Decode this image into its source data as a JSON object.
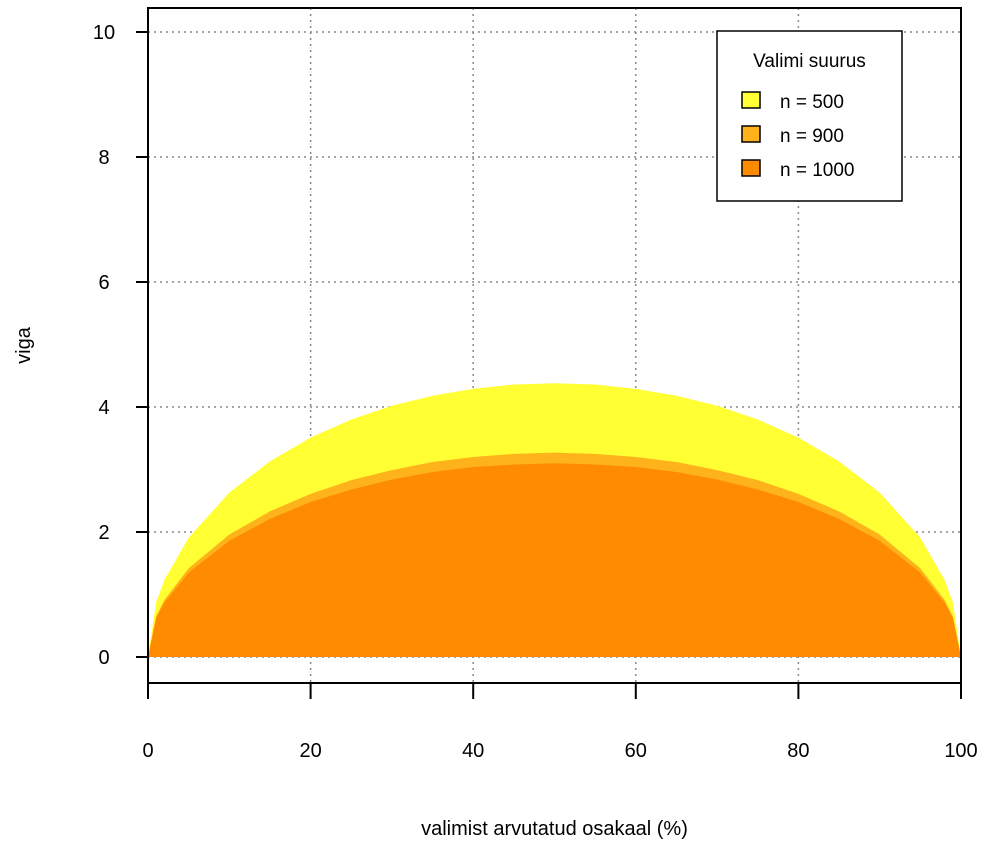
{
  "chart_data": {
    "type": "area",
    "xlabel": "valimist arvutatud osakaal (%)",
    "ylabel": "viga",
    "xlim": [
      0,
      100
    ],
    "ylim": [
      0,
      10
    ],
    "x_ticks": [
      0,
      20,
      40,
      60,
      80,
      100
    ],
    "y_ticks": [
      0,
      2,
      4,
      6,
      8,
      10
    ],
    "grid": true,
    "legend": {
      "title": "Valimi suurus",
      "position": "top-right"
    },
    "x": [
      0,
      1,
      2,
      5,
      10,
      15,
      20,
      25,
      30,
      35,
      40,
      45,
      50,
      55,
      60,
      65,
      70,
      75,
      80,
      85,
      90,
      95,
      98,
      99,
      100
    ],
    "series": [
      {
        "name": "n = 500",
        "color": "#ffff33",
        "values": [
          0,
          0.87,
          1.23,
          1.91,
          2.63,
          3.13,
          3.51,
          3.8,
          4.02,
          4.18,
          4.29,
          4.36,
          4.38,
          4.36,
          4.29,
          4.18,
          4.02,
          3.8,
          3.51,
          3.13,
          2.63,
          1.91,
          1.23,
          0.87,
          0
        ]
      },
      {
        "name": "n = 900",
        "color": "#ffb31a",
        "values": [
          0,
          0.65,
          0.91,
          1.42,
          1.96,
          2.33,
          2.61,
          2.83,
          2.99,
          3.12,
          3.2,
          3.25,
          3.27,
          3.25,
          3.2,
          3.12,
          2.99,
          2.83,
          2.61,
          2.33,
          1.96,
          1.42,
          0.91,
          0.65,
          0
        ]
      },
      {
        "name": "n = 1000",
        "color": "#ff8c00",
        "values": [
          0,
          0.62,
          0.87,
          1.35,
          1.86,
          2.21,
          2.48,
          2.68,
          2.84,
          2.96,
          3.04,
          3.08,
          3.1,
          3.08,
          3.04,
          2.96,
          2.84,
          2.68,
          2.48,
          2.21,
          1.86,
          1.35,
          0.87,
          0.62,
          0
        ]
      }
    ]
  }
}
